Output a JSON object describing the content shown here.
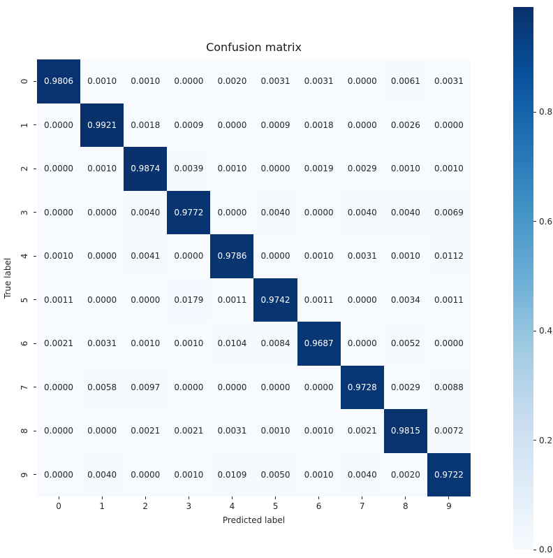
{
  "figure": {
    "background": "#ffffff"
  },
  "chart_data": {
    "type": "heatmap",
    "title": "Confusion matrix",
    "xlabel": "Predicted label",
    "ylabel": "True label",
    "x_tick_labels": [
      "0",
      "1",
      "2",
      "3",
      "4",
      "5",
      "6",
      "7",
      "8",
      "9"
    ],
    "y_tick_labels": [
      "0",
      "1",
      "2",
      "3",
      "4",
      "5",
      "6",
      "7",
      "8",
      "9"
    ],
    "matrix": [
      [
        0.9806,
        0.001,
        0.001,
        0.0,
        0.002,
        0.0031,
        0.0031,
        0.0,
        0.0061,
        0.0031
      ],
      [
        0.0,
        0.9921,
        0.0018,
        0.0009,
        0.0,
        0.0009,
        0.0018,
        0.0,
        0.0026,
        0.0
      ],
      [
        0.0,
        0.001,
        0.9874,
        0.0039,
        0.001,
        0.0,
        0.0019,
        0.0029,
        0.001,
        0.001
      ],
      [
        0.0,
        0.0,
        0.004,
        0.9772,
        0.0,
        0.004,
        0.0,
        0.004,
        0.004,
        0.0069
      ],
      [
        0.001,
        0.0,
        0.0041,
        0.0,
        0.9786,
        0.0,
        0.001,
        0.0031,
        0.001,
        0.0112
      ],
      [
        0.0011,
        0.0,
        0.0,
        0.0179,
        0.0011,
        0.9742,
        0.0011,
        0.0,
        0.0034,
        0.0011
      ],
      [
        0.0021,
        0.0031,
        0.001,
        0.001,
        0.0104,
        0.0084,
        0.9687,
        0.0,
        0.0052,
        0.0
      ],
      [
        0.0,
        0.0058,
        0.0097,
        0.0,
        0.0,
        0.0,
        0.0,
        0.9728,
        0.0029,
        0.0088
      ],
      [
        0.0,
        0.0,
        0.0021,
        0.0021,
        0.0031,
        0.001,
        0.001,
        0.0021,
        0.9815,
        0.0072
      ],
      [
        0.0,
        0.004,
        0.0,
        0.001,
        0.0109,
        0.005,
        0.001,
        0.004,
        0.002,
        0.9722
      ]
    ],
    "annotation_decimals": 4,
    "grid": false,
    "colormap": "Blues",
    "colormap_stops": [
      "#f7fbff",
      "#deebf7",
      "#c6dbef",
      "#9ecae1",
      "#6baed6",
      "#4292c6",
      "#2171b5",
      "#08519c",
      "#08306b"
    ],
    "annotation_colors": {
      "on_dark": "#ffffff",
      "on_light": "#262626"
    },
    "axis_text_color": "#262626",
    "colorbar": {
      "position": "right",
      "tick_labels": [
        "0.0",
        "0.2",
        "0.4",
        "0.6",
        "0.8"
      ],
      "tick_values": [
        0.0,
        0.2,
        0.4,
        0.6,
        0.8
      ],
      "vmin": 0.0,
      "vmax": 0.9921
    }
  }
}
